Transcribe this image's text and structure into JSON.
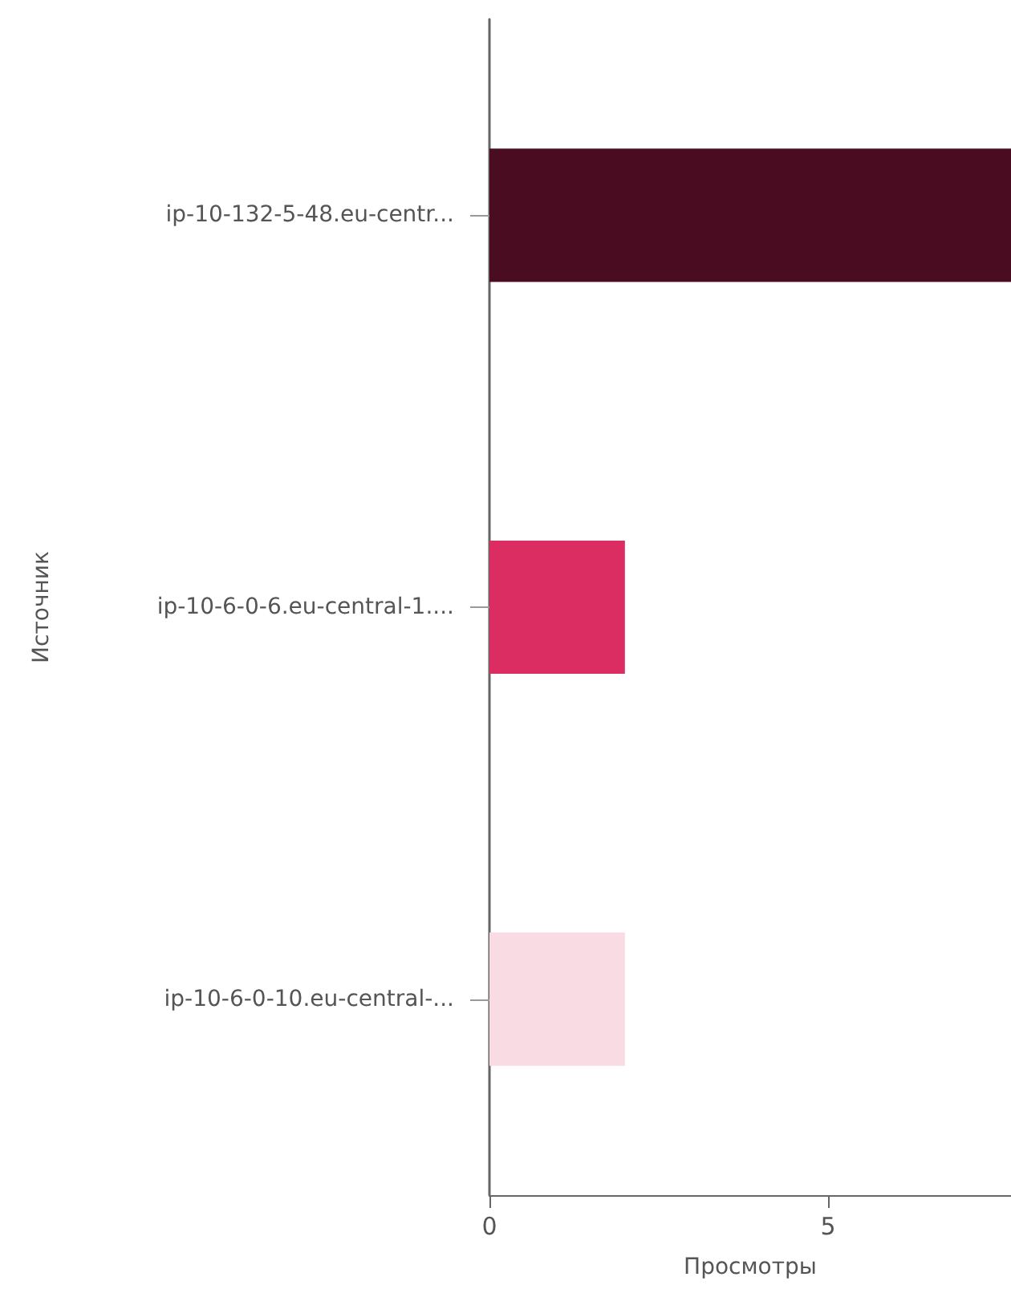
{
  "chart_data": {
    "type": "bar",
    "orientation": "horizontal",
    "xlabel": "Просмотры",
    "ylabel": "Источник",
    "categories": [
      "ip-10-132-5-48.eu-centr...",
      "ip-10-6-0-6.eu-central-1....",
      "ip-10-6-0-10.eu-central-..."
    ],
    "values": [
      7.7,
      2,
      2
    ],
    "colors": [
      "#4a0c20",
      "#dc2d63",
      "#f9dbe4"
    ],
    "xlim": [
      0,
      7.7
    ],
    "xticks": [
      0,
      5
    ],
    "grid": false
  }
}
